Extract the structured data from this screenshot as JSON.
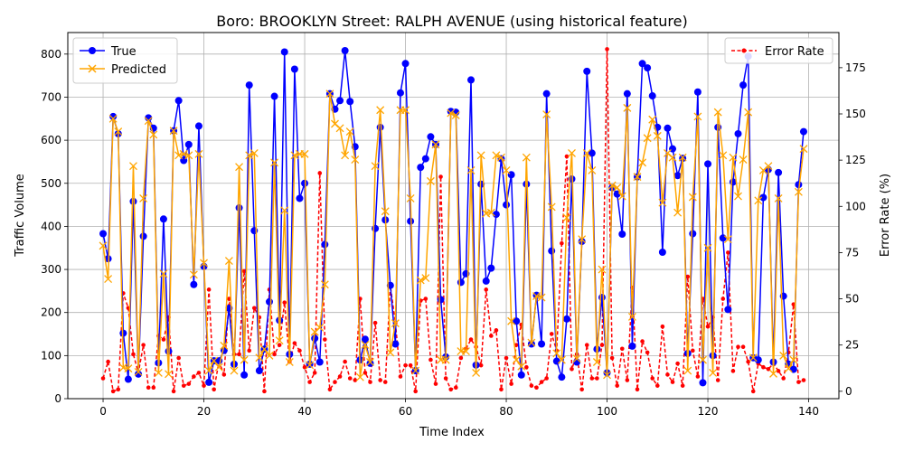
{
  "chart_data": {
    "type": "line",
    "title": "Boro: BROOKLYN Street: RALPH AVENUE (using historical feature)",
    "xlabel": "Time Index",
    "ylabel": "Traffic Volume",
    "y2label": "Error Rate (%)",
    "xlim": [
      -7,
      146
    ],
    "ylim": [
      0,
      850
    ],
    "y2lim": [
      -4,
      194
    ],
    "x_ticks": [
      0,
      20,
      40,
      60,
      80,
      100,
      120,
      140
    ],
    "y_ticks": [
      0,
      100,
      200,
      300,
      400,
      500,
      600,
      700,
      800
    ],
    "y2_ticks": [
      0,
      25,
      50,
      75,
      100,
      125,
      150,
      175
    ],
    "grid": true,
    "legend_left": "upper-left",
    "legend_right": "upper-right",
    "series": [
      {
        "name": "True",
        "axis": "left",
        "color": "#0000ff",
        "values": [
          383,
          325,
          655,
          615,
          152,
          45,
          458,
          57,
          377,
          652,
          628,
          83,
          417,
          110,
          622,
          692,
          553,
          590,
          265,
          633,
          307,
          38,
          88,
          88,
          112,
          210,
          80,
          443,
          55,
          728,
          390,
          65,
          115,
          225,
          702,
          182,
          805,
          103,
          765,
          465,
          500,
          80,
          140,
          85,
          358,
          708,
          672,
          692,
          808,
          690,
          585,
          90,
          138,
          82,
          395,
          630,
          415,
          263,
          127,
          710,
          778,
          412,
          65,
          537,
          557,
          608,
          590,
          230,
          97,
          667,
          665,
          270,
          290,
          740,
          78,
          498,
          273,
          303,
          428,
          557,
          450,
          520,
          180,
          55,
          498,
          127,
          240,
          127,
          708,
          343,
          87,
          50,
          185,
          510,
          85,
          365,
          760,
          570,
          115,
          235,
          60,
          490,
          475,
          382,
          708,
          122,
          515,
          778,
          768,
          703,
          630,
          340,
          628,
          580,
          518,
          558,
          105,
          383,
          712,
          37,
          545,
          100,
          630,
          373,
          207,
          503,
          615,
          728,
          795,
          95,
          90,
          467,
          532,
          85,
          525,
          238,
          80,
          68,
          497,
          620
        ]
      },
      {
        "name": "Predicted",
        "axis": "left",
        "color": "#ffa500",
        "values": [
          355,
          278,
          650,
          620,
          72,
          70,
          540,
          62,
          465,
          645,
          613,
          60,
          290,
          57,
          622,
          565,
          568,
          565,
          288,
          568,
          315,
          65,
          88,
          73,
          123,
          320,
          65,
          538,
          90,
          565,
          570,
          95,
          115,
          100,
          548,
          135,
          437,
          85,
          565,
          568,
          568,
          78,
          155,
          165,
          265,
          708,
          638,
          628,
          565,
          620,
          555,
          50,
          125,
          85,
          540,
          670,
          435,
          107,
          175,
          670,
          670,
          465,
          65,
          275,
          280,
          505,
          590,
          90,
          90,
          663,
          658,
          110,
          110,
          530,
          60,
          565,
          430,
          432,
          565,
          560,
          530,
          180,
          90,
          75,
          560,
          130,
          238,
          235,
          660,
          445,
          105,
          90,
          420,
          570,
          93,
          370,
          570,
          530,
          85,
          300,
          55,
          495,
          490,
          470,
          675,
          190,
          515,
          548,
          605,
          648,
          610,
          455,
          570,
          560,
          432,
          560,
          65,
          468,
          655,
          90,
          350,
          60,
          665,
          565,
          370,
          560,
          470,
          555,
          665,
          95,
          460,
          530,
          540,
          58,
          465,
          100,
          70,
          90,
          480,
          580
        ]
      },
      {
        "name": "Error Rate",
        "axis": "right",
        "color": "#ff0000",
        "values": [
          7,
          16,
          0,
          1,
          53,
          45,
          20,
          10,
          25,
          2,
          2,
          30,
          28,
          40,
          0,
          18,
          3,
          4,
          8,
          10,
          3,
          55,
          1,
          16,
          9,
          50,
          20,
          20,
          65,
          22,
          45,
          40,
          0,
          55,
          20,
          25,
          48,
          16,
          26,
          22,
          13,
          5,
          10,
          118,
          28,
          1,
          5,
          8,
          16,
          7,
          6,
          50,
          10,
          5,
          37,
          6,
          5,
          57,
          37,
          8,
          14,
          14,
          0,
          49,
          50,
          17,
          4,
          116,
          7,
          1,
          2,
          18,
          23,
          28,
          24,
          14,
          55,
          30,
          33,
          1,
          18,
          4,
          25,
          36,
          13,
          3,
          2,
          5,
          7,
          31,
          22,
          80,
          127,
          12,
          20,
          1,
          25,
          7,
          7,
          25,
          185,
          18,
          3,
          23,
          6,
          56,
          1,
          27,
          21,
          7,
          3,
          35,
          9,
          5,
          15,
          3,
          62,
          22,
          8,
          50,
          35,
          40,
          6,
          50,
          75,
          11,
          24,
          24,
          16,
          0,
          15,
          13,
          12,
          15,
          11,
          7,
          21,
          47,
          5,
          6
        ]
      }
    ]
  }
}
